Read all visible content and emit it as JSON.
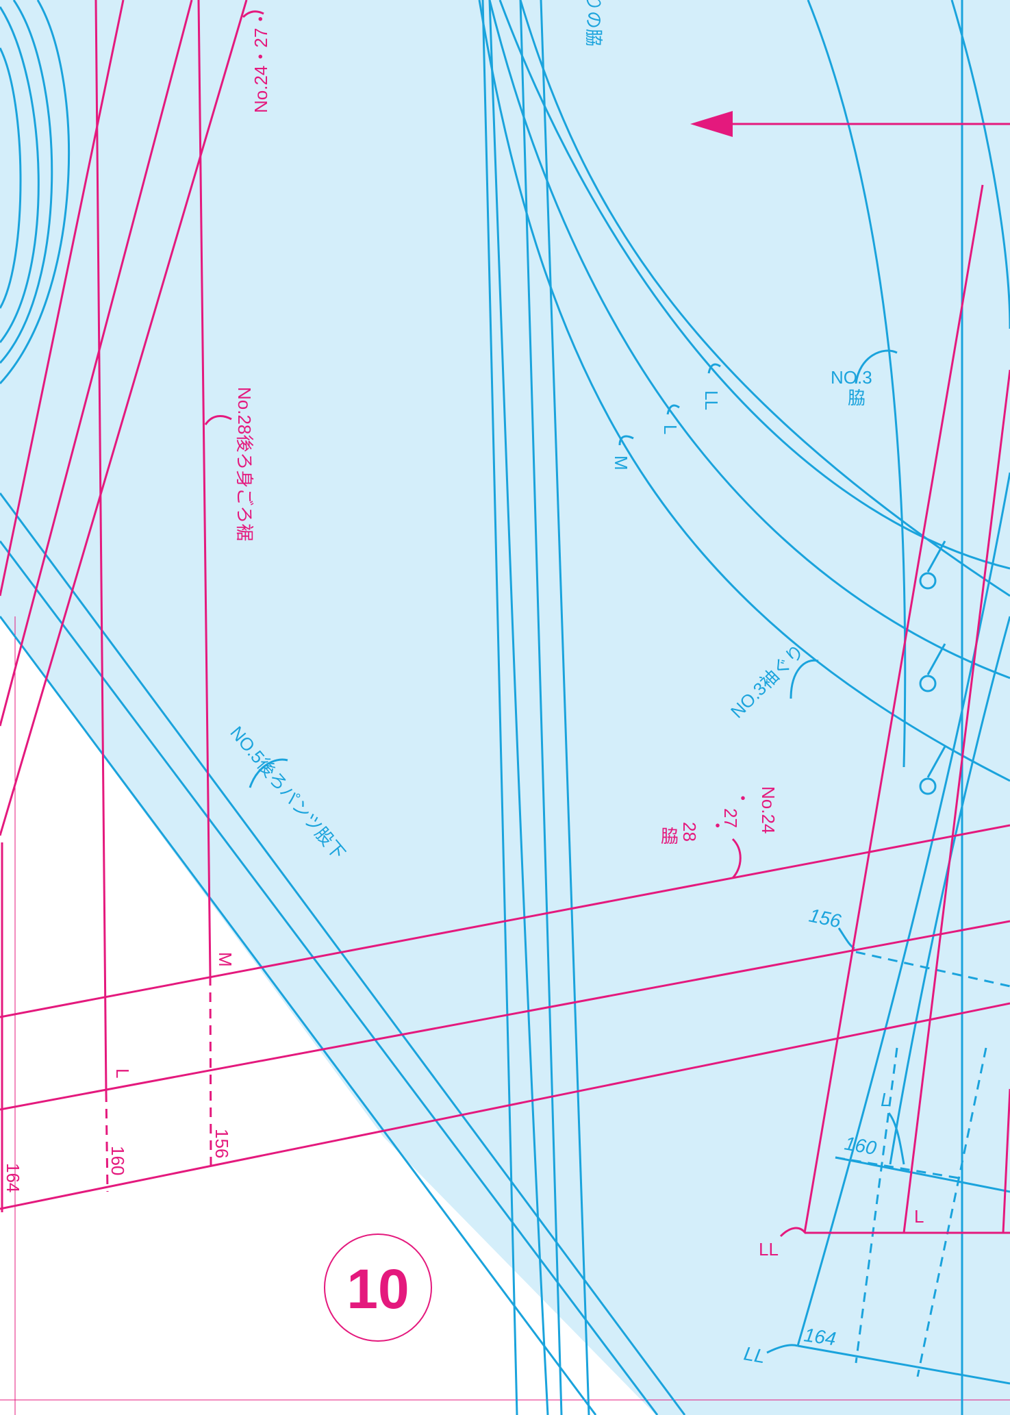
{
  "page_number": "10",
  "colors": {
    "background": "#ffffff",
    "fabric": "#d4eefa",
    "blue_line": "#1aa3dc",
    "magenta_line": "#e4197d"
  },
  "labels": {
    "top_fragment": "りの脇",
    "no24_27_top": "No.24・27・",
    "no28_back_hem": "No.28後ろ身ごろ裾",
    "no3_side_a": "NO.3",
    "no3_side_b": "脇",
    "no3_sleeve": "NO.3袖ぐり",
    "no5_pants": "NO.5後ろパンツ股下",
    "no24_side_a": "No.24",
    "no24_side_b": "・",
    "no24_side_c": "27",
    "no24_side_d": "・",
    "no24_side_e": "28",
    "no24_side_f": "脇",
    "size_m_curve": "M",
    "size_l_curve": "L",
    "size_ll_curve": "LL",
    "size_m_left": "M",
    "size_l_left": "L",
    "size_156_left": "156",
    "size_160_left": "160",
    "size_164_left": "164",
    "size_156_right": "156",
    "size_l_right_upper": "L",
    "size_160_right": "160",
    "size_l_right_lower": "L",
    "size_ll_right": "LL",
    "size_ll_bottom": "LL",
    "size_164_right": "164"
  }
}
